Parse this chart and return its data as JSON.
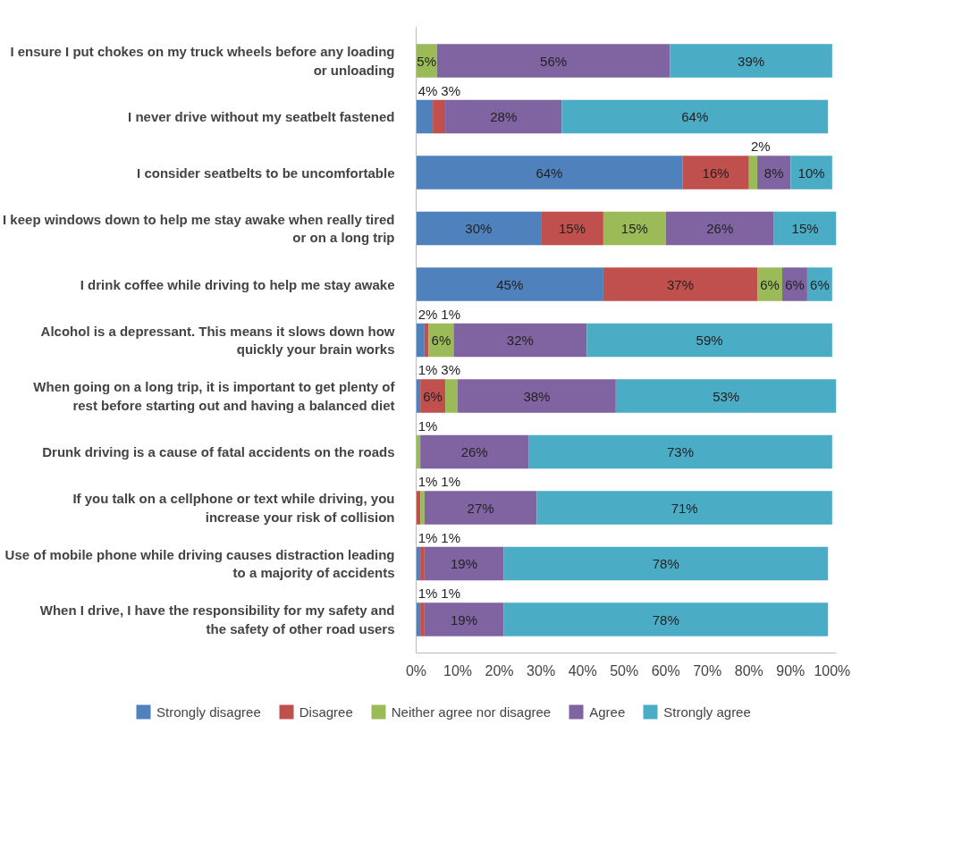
{
  "chart_data": {
    "type": "bar",
    "orientation": "horizontal",
    "stacked": true,
    "categories": [
      "I ensure I put chokes on my truck wheels before any loading or unloading",
      "I never drive without my seatbelt fastened",
      "I consider seatbelts to be uncomfortable",
      "I keep windows down to help me stay awake when really tired or on a long trip",
      "I drink coffee while driving to help me stay awake",
      "Alcohol is a depressant. This means it slows down how quickly your brain works",
      "When going on a long trip, it is important to get plenty of rest before starting out and having a balanced diet",
      "Drunk driving is a cause of fatal accidents on the roads",
      "If you talk on a cellphone or text while driving, you increase your risk of collision",
      "Use of mobile phone while driving causes distraction leading to a majority of accidents",
      "When I drive, I have the responsibility for my safety and the safety of other road users"
    ],
    "series": [
      {
        "name": "Strongly disagree",
        "color": "#4f81bd",
        "values": [
          0,
          4,
          64,
          30,
          45,
          2,
          1,
          0,
          0,
          1,
          1
        ],
        "value_labels": [
          null,
          "4%",
          "64%",
          "30%",
          "45%",
          "2%",
          "1%",
          null,
          null,
          "1%",
          "1%"
        ]
      },
      {
        "name": "Disagree",
        "color": "#c0504d",
        "values": [
          0,
          3,
          16,
          15,
          37,
          1,
          6,
          0,
          1,
          1,
          1
        ],
        "value_labels": [
          null,
          "3%",
          "16%",
          "15%",
          "37%",
          "1%",
          "6%",
          null,
          "1%",
          "1%",
          "1%"
        ]
      },
      {
        "name": "Neither agree nor disagree",
        "color": "#9bbb59",
        "values": [
          5,
          0,
          2,
          15,
          6,
          6,
          3,
          1,
          1,
          0,
          0
        ],
        "value_labels": [
          "5%",
          null,
          "2%",
          "15%",
          "6%",
          "6%",
          "3%",
          "1%",
          "1%",
          null,
          null
        ]
      },
      {
        "name": "Agree",
        "color": "#8064a2",
        "values": [
          56,
          28,
          8,
          26,
          6,
          32,
          38,
          26,
          27,
          19,
          19
        ],
        "value_labels": [
          "56%",
          "28%",
          "8%",
          "26%",
          "6%",
          "32%",
          "38%",
          "26%",
          "27%",
          "19%",
          "19%"
        ]
      },
      {
        "name": "Strongly agree",
        "color": "#4bacc6",
        "values": [
          39,
          64,
          10,
          15,
          6,
          59,
          53,
          73,
          71,
          78,
          78
        ],
        "value_labels": [
          "39%",
          "64%",
          "10%",
          "15%",
          "6%",
          "59%",
          "53%",
          "73%",
          "71%",
          "78%",
          "78%"
        ]
      }
    ],
    "xlim": [
      0,
      101
    ],
    "xticks": [
      {
        "value": 0,
        "label": "0%"
      },
      {
        "value": 10,
        "label": "10%"
      },
      {
        "value": 20,
        "label": "20%"
      },
      {
        "value": 30,
        "label": "30%"
      },
      {
        "value": 40,
        "label": "40%"
      },
      {
        "value": 50,
        "label": "50%"
      },
      {
        "value": 60,
        "label": "60%"
      },
      {
        "value": 70,
        "label": "70%"
      },
      {
        "value": 80,
        "label": "80%"
      },
      {
        "value": 90,
        "label": "90%"
      },
      {
        "value": 100,
        "label": "100%"
      }
    ],
    "legend": "bottom",
    "grid": false
  }
}
